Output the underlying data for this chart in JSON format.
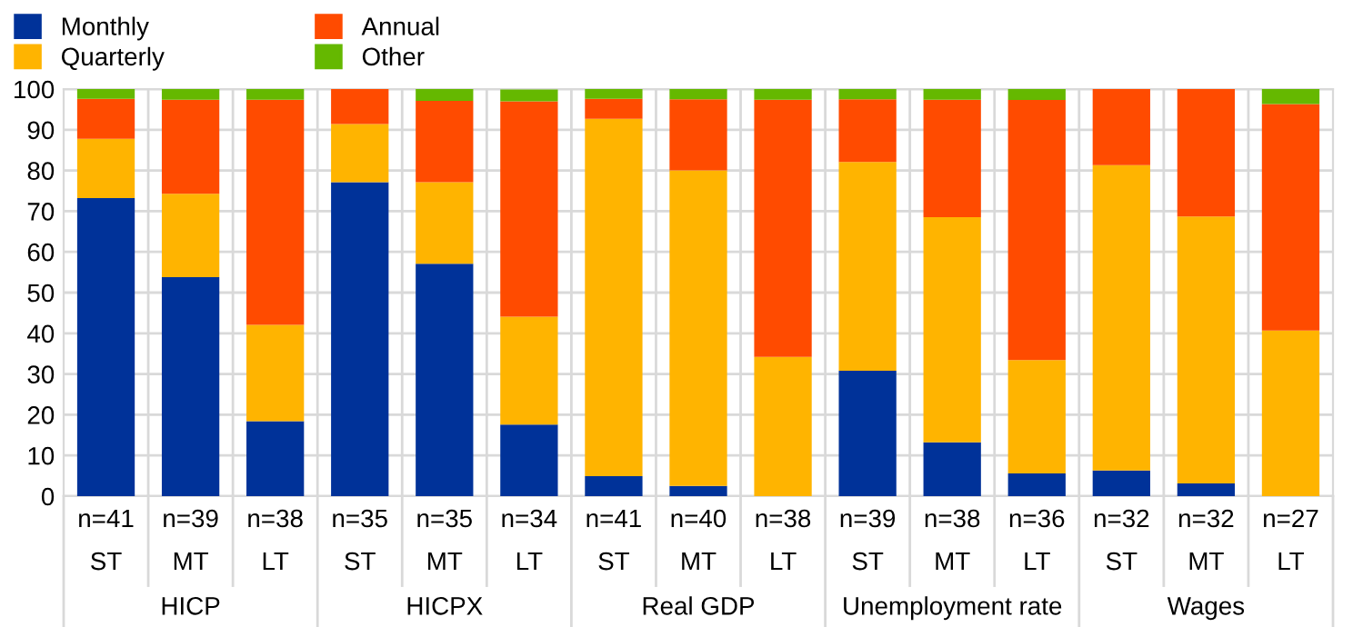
{
  "chart_data": {
    "type": "bar",
    "stacked": true,
    "categories": [
      "n=41\nST",
      "n=39\nMT",
      "n=38\nLT",
      "n=35\nST",
      "n=35\nMT",
      "n=34\nLT",
      "n=41\nST",
      "n=40\nMT",
      "n=38\nLT",
      "n=39\nST",
      "n=38\nMT",
      "n=36\nLT",
      "n=32\nST",
      "n=32\nMT",
      "n=27\nLT"
    ],
    "series": [
      {
        "name": "Monthly",
        "color": "#003299",
        "values": [
          73.2,
          53.8,
          18.4,
          77.1,
          57.1,
          17.6,
          4.9,
          2.5,
          0,
          30.8,
          13.2,
          5.6,
          6.3,
          3.1,
          0
        ]
      },
      {
        "name": "Quarterly",
        "color": "#ffb400",
        "values": [
          14.6,
          20.5,
          23.7,
          14.3,
          20.0,
          26.5,
          87.8,
          77.5,
          34.2,
          51.3,
          55.3,
          27.8,
          75.0,
          65.6,
          40.7
        ]
      },
      {
        "name": "Annual",
        "color": "#ff4b00",
        "values": [
          9.8,
          23.1,
          55.3,
          8.6,
          20.0,
          52.9,
          4.9,
          17.5,
          63.2,
          15.4,
          28.9,
          63.9,
          18.8,
          31.3,
          55.6
        ]
      },
      {
        "name": "Other",
        "color": "#65b800",
        "values": [
          2.4,
          2.6,
          2.6,
          0,
          2.9,
          2.9,
          2.4,
          2.5,
          2.6,
          2.5,
          2.6,
          2.7,
          0,
          0,
          3.7
        ]
      }
    ],
    "annotations": [
      "HICP",
      "HICPX",
      "Real GDP",
      "Unemployment rate",
      "Wages"
    ],
    "ylim": [
      0,
      100
    ],
    "yticks": [
      0,
      10,
      20,
      30,
      40,
      50,
      60,
      70,
      80,
      90,
      100
    ],
    "grid": true,
    "legend": "top left"
  }
}
